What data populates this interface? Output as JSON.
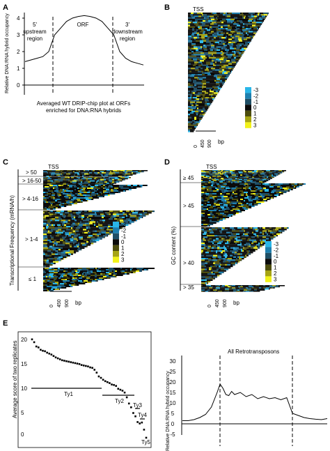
{
  "figure": {
    "panels": {
      "A": {
        "label": "A",
        "ylabel": "Relative DNA:RNA hybrid occupancy",
        "yticks": [
          "0",
          "1",
          "2",
          "3",
          "4"
        ],
        "regions": {
          "upstream": [
            "5'",
            "upstream",
            "region"
          ],
          "orf": "ORF",
          "downstream": [
            "3'",
            "downstream",
            "region"
          ]
        },
        "caption": [
          "Averaged WT DRIP-chip plot at ORFs",
          "enriched for DNA:RNA hybrids"
        ]
      },
      "B": {
        "label": "B",
        "tss": "TSS",
        "xticks": [
          "0",
          "450",
          "900"
        ],
        "xunit": "bp"
      },
      "C": {
        "label": "C",
        "tss": "TSS",
        "ylabel": "Transcriptional Frequency (mRNA/h)",
        "groups": [
          "> 50",
          "> 16-50",
          "> 4-16",
          "> 1-4",
          "≤ 1"
        ],
        "xticks": [
          "0",
          "450",
          "900"
        ],
        "xunit": "bp"
      },
      "D": {
        "label": "D",
        "tss": "TSS",
        "ylabel": "GC content (%)",
        "groups": [
          "≥ 45",
          "> 45",
          "> 40",
          "> 35"
        ],
        "xticks": [
          "0",
          "450",
          "900"
        ],
        "xunit": "bp"
      },
      "E": {
        "label": "E",
        "ylabel": "Average score of two replicates",
        "yticks": [
          "0",
          "5",
          "10",
          "15",
          "20"
        ],
        "families": [
          "Ty1",
          "Ty2",
          "Ty3",
          "Ty4",
          "Ty5"
        ]
      },
      "F": {
        "title": "All Retrotransposons",
        "ylabel": "Relative DNA:RNA hybrid occupancy",
        "yticks": [
          "-5",
          "0",
          "5",
          "10",
          "15",
          "20",
          "25",
          "30"
        ]
      }
    },
    "colorscale": {
      "labels": [
        "-3",
        "-2",
        "-1",
        "0",
        "1",
        "2",
        "3"
      ],
      "colors": [
        "#29b6e8",
        "#1e7fae",
        "#1f4f66",
        "#0b0b0b",
        "#4d4d0e",
        "#a6a414",
        "#f2f21a"
      ]
    }
  },
  "chart_data": [
    {
      "type": "line",
      "panel": "A",
      "title": "",
      "ylabel": "Relative DNA:RNA hybrid occupancy",
      "ylim": [
        -0.5,
        4.5
      ],
      "x": [
        0,
        5,
        10,
        15,
        20,
        25,
        30,
        35,
        40,
        45,
        50,
        55,
        60,
        65,
        70,
        75,
        80,
        85,
        90,
        95,
        100
      ],
      "values": [
        1.4,
        1.5,
        1.6,
        1.7,
        2.0,
        3.0,
        3.4,
        3.8,
        4.0,
        4.1,
        4.15,
        4.1,
        4.0,
        3.8,
        3.4,
        3.0,
        2.0,
        1.6,
        1.4,
        1.3,
        1.2
      ]
    },
    {
      "type": "scatter",
      "panel": "E",
      "ylabel": "Average score of two replicates",
      "ylim": [
        -1,
        21
      ],
      "values": [
        20,
        19.4,
        18.5,
        18.3,
        17.8,
        17.6,
        17.5,
        17.2,
        17,
        16.8,
        16.5,
        16.2,
        16,
        15.8,
        15.6,
        15.5,
        15.4,
        15.3,
        15.2,
        15.1,
        15.0,
        14.9,
        14.8,
        14.6,
        14.5,
        14.4,
        14.3,
        14.1,
        14.0,
        13.6,
        13.0,
        12.2,
        11.9,
        11.5,
        11.2,
        11.0,
        10.8,
        10.5,
        10.4,
        10.2,
        9.6,
        9.4,
        9.2,
        8.8,
        7.8,
        6.5,
        5.7,
        4.5,
        3.8,
        2.6,
        2.3,
        2.5,
        1.0,
        -0.7
      ]
    },
    {
      "type": "line",
      "panel": "F",
      "title": "All Retrotransposons",
      "ylabel": "Relative DNA:RNA hybrid occupancy",
      "ylim": [
        -5,
        30
      ],
      "x": [
        0,
        4,
        8,
        12,
        16,
        20,
        24,
        26,
        28,
        30,
        32,
        34,
        36,
        40,
        44,
        48,
        52,
        56,
        60,
        64,
        68,
        72,
        76,
        80,
        84,
        88,
        92,
        96,
        100
      ],
      "values": [
        1.5,
        1.5,
        2.0,
        3.0,
        4.5,
        8,
        15,
        19,
        17,
        14,
        13.5,
        15.5,
        14,
        15,
        13,
        14,
        12,
        13,
        12,
        12.5,
        11.5,
        12.5,
        5,
        4,
        3,
        2.5,
        2.2,
        2.0,
        2.5
      ]
    }
  ]
}
